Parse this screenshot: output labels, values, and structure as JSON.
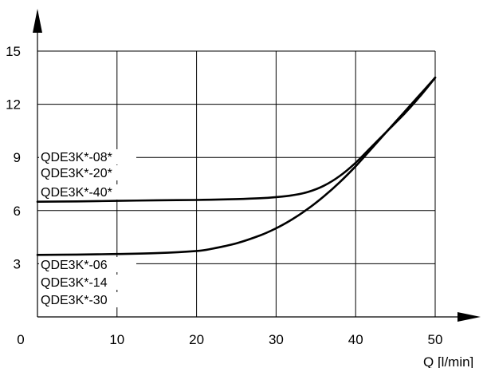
{
  "chart_data": {
    "type": "line",
    "xlabel": "Q [l/min]",
    "ylabel": "",
    "xlim": [
      0,
      50
    ],
    "ylim": [
      0,
      15
    ],
    "x_ticks": [
      0,
      10,
      20,
      30,
      40,
      50
    ],
    "y_ticks": [
      3,
      6,
      9,
      12,
      15
    ],
    "grid": true,
    "series": [
      {
        "labels": [
          "QDE3K*-08*",
          "QDE3K*-20*",
          "QDE3K*-40*"
        ],
        "points": [
          [
            0,
            6.5
          ],
          [
            5,
            6.52
          ],
          [
            10,
            6.55
          ],
          [
            15,
            6.58
          ],
          [
            20,
            6.6
          ],
          [
            25,
            6.65
          ],
          [
            28,
            6.7
          ],
          [
            30,
            6.76
          ],
          [
            32,
            6.86
          ],
          [
            34,
            7.05
          ],
          [
            36,
            7.4
          ],
          [
            38,
            7.95
          ],
          [
            40,
            8.7
          ],
          [
            42,
            9.6
          ],
          [
            44,
            10.5
          ],
          [
            46,
            11.4
          ],
          [
            48,
            12.4
          ],
          [
            50,
            13.5
          ]
        ]
      },
      {
        "labels": [
          "QDE3K*-06",
          "QDE3K*-14",
          "QDE3K*-30"
        ],
        "points": [
          [
            0,
            3.5
          ],
          [
            5,
            3.52
          ],
          [
            10,
            3.55
          ],
          [
            15,
            3.6
          ],
          [
            20,
            3.72
          ],
          [
            22,
            3.85
          ],
          [
            25,
            4.15
          ],
          [
            28,
            4.6
          ],
          [
            30,
            5.0
          ],
          [
            32,
            5.5
          ],
          [
            34,
            6.1
          ],
          [
            36,
            6.8
          ],
          [
            38,
            7.6
          ],
          [
            40,
            8.5
          ],
          [
            42,
            9.5
          ],
          [
            44,
            10.5
          ],
          [
            46,
            11.5
          ],
          [
            48,
            12.5
          ],
          [
            50,
            13.5
          ]
        ]
      }
    ]
  }
}
